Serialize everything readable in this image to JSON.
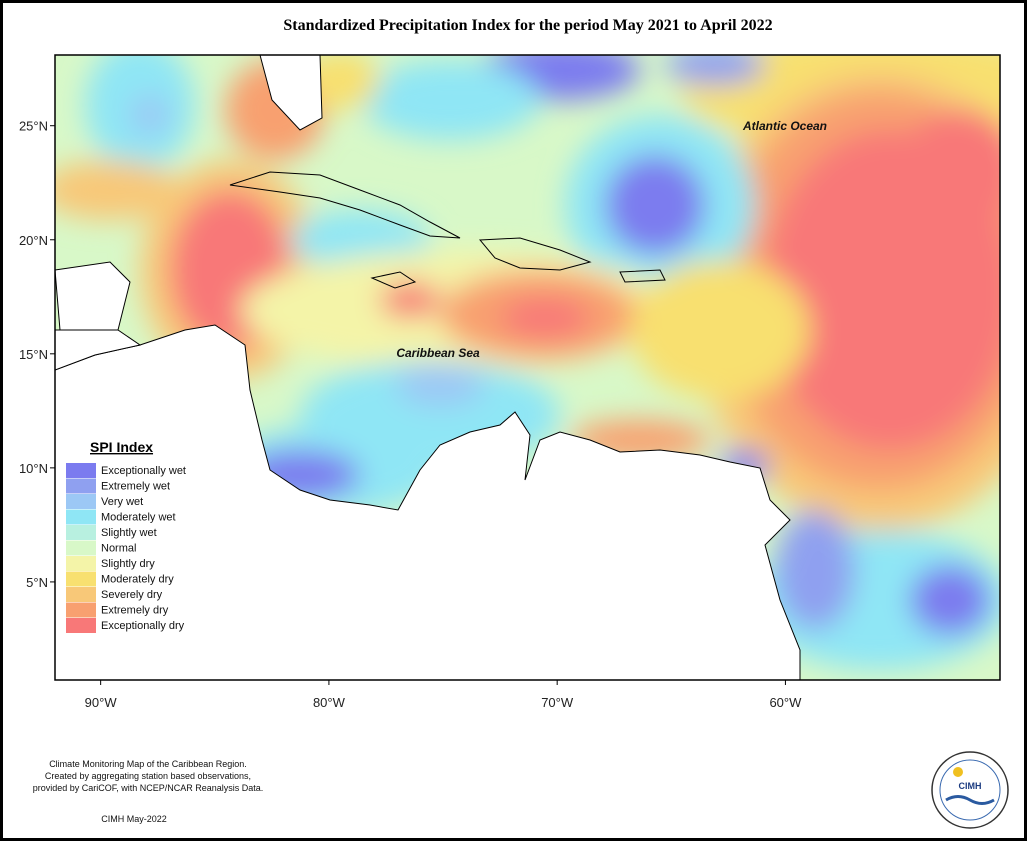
{
  "map": {
    "title": "Standardized Precipitation Index for the period May 2021 to April 2022",
    "xlim": [
      -92,
      -50.6
    ],
    "ylim": [
      0.7,
      28.1
    ],
    "xticks": [
      {
        "value": -90,
        "label": "90°W"
      },
      {
        "value": -80,
        "label": "80°W"
      },
      {
        "value": -70,
        "label": "70°W"
      },
      {
        "value": -60,
        "label": "60°W"
      }
    ],
    "yticks": [
      {
        "value": 25,
        "label": "25°N"
      },
      {
        "value": 20,
        "label": "20°N"
      },
      {
        "value": 15,
        "label": "15°N"
      },
      {
        "value": 10,
        "label": "10°N"
      },
      {
        "value": 5,
        "label": "5°N"
      }
    ],
    "labels": [
      "Atlantic Ocean",
      "Caribbean Sea"
    ],
    "legend": {
      "title": "SPI Index",
      "items": [
        {
          "label": "Exceptionally wet",
          "color": "#7b7bef"
        },
        {
          "label": "Extremely wet",
          "color": "#8fa0f0"
        },
        {
          "label": "Very wet",
          "color": "#9cc8f5"
        },
        {
          "label": "Moderately wet",
          "color": "#8fe6f5"
        },
        {
          "label": "Slightly wet",
          "color": "#b8f0e0"
        },
        {
          "label": "Normal",
          "color": "#d8f8c8"
        },
        {
          "label": "Slightly dry",
          "color": "#f4f4a8"
        },
        {
          "label": "Moderately dry",
          "color": "#f8e070"
        },
        {
          "label": "Severely dry",
          "color": "#f8c878"
        },
        {
          "label": "Extremely dry",
          "color": "#f8a070"
        },
        {
          "label": "Exceptionally dry",
          "color": "#f87878"
        }
      ]
    }
  },
  "footer": {
    "notes": [
      "Climate Monitoring Map of the Caribbean Region.",
      "Created by aggregating station based observations,",
      "provided by CariCOF, with NCEP/NCAR Reanalysis Data."
    ],
    "date": "CIMH May-2022"
  },
  "logo": {
    "text": "CIMH"
  }
}
